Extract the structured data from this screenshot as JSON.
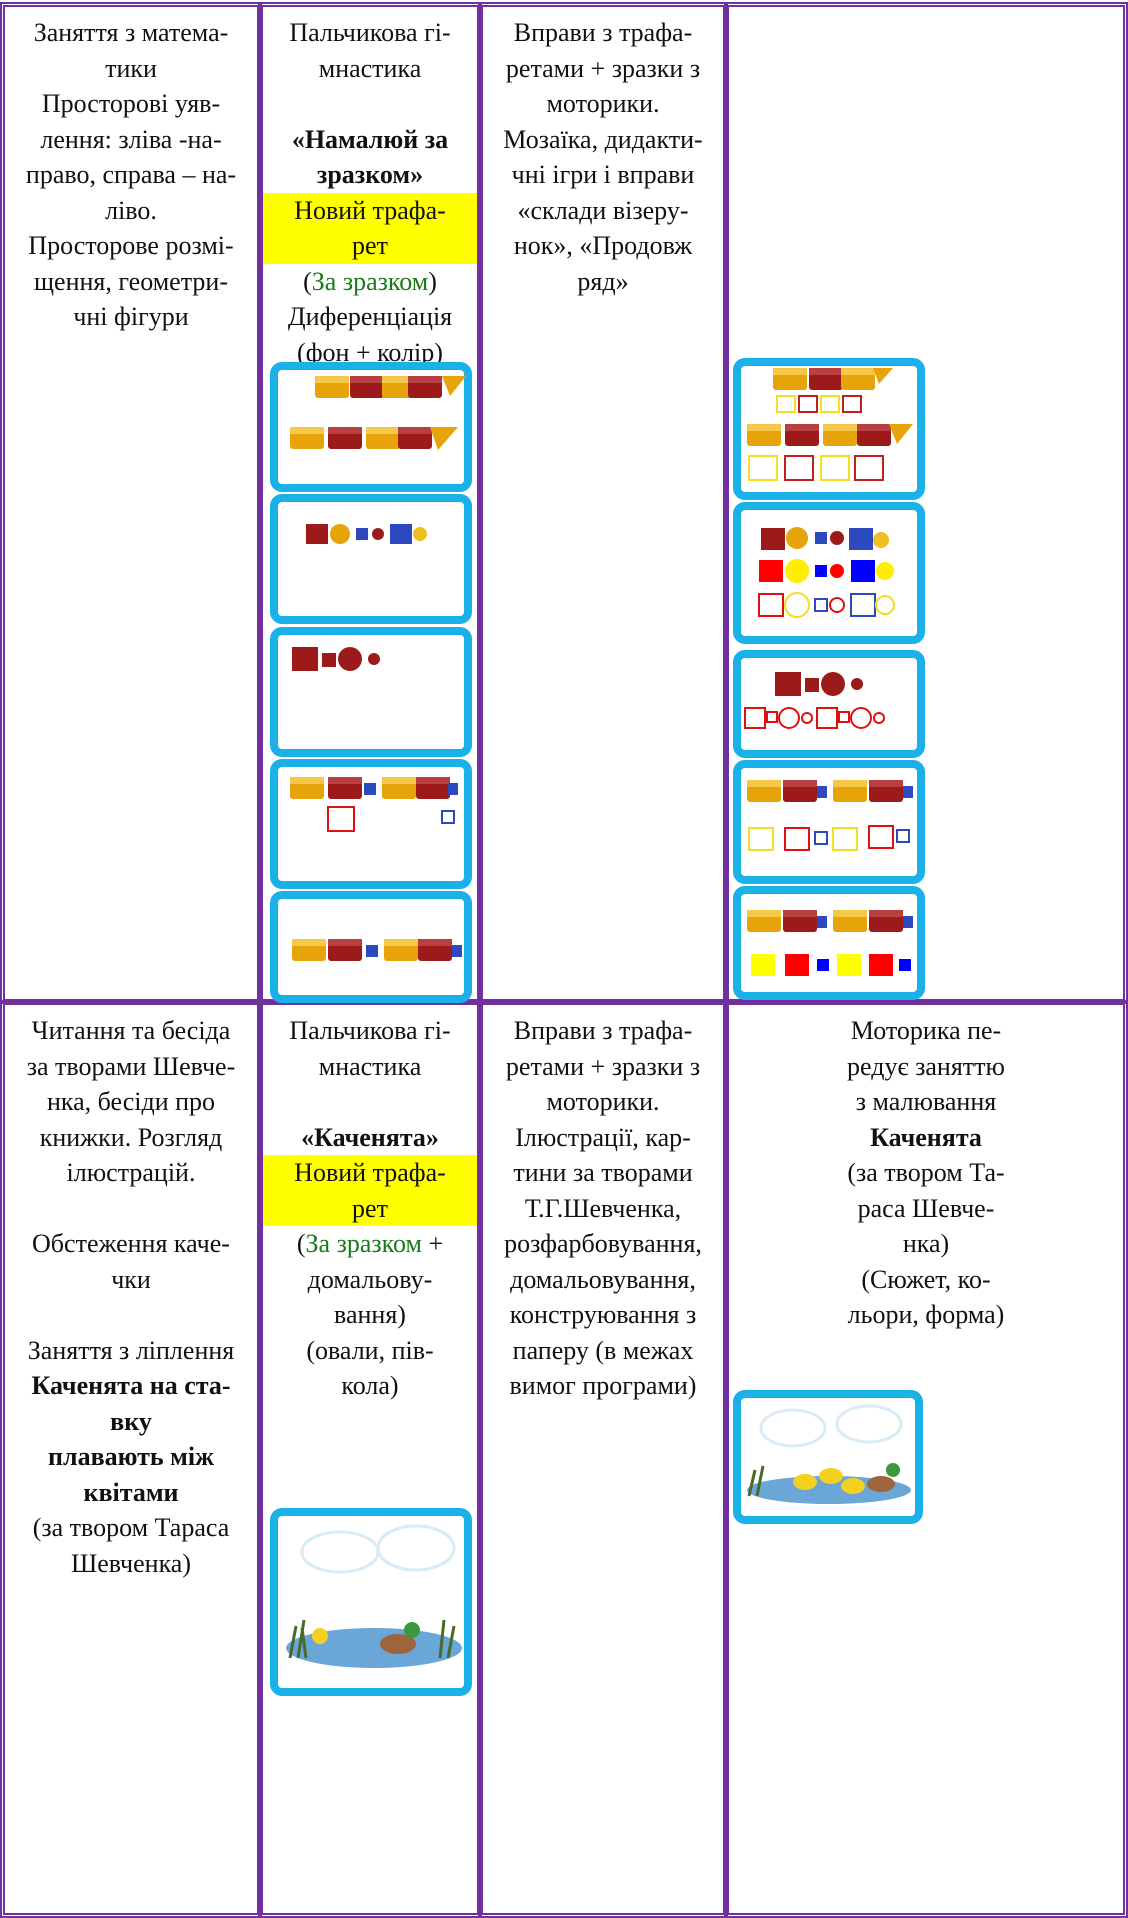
{
  "table": {
    "rows": [
      {
        "cells": [
          {
            "paragraphs": [
              [
                "Заняття з матема-",
                "тики",
                "Просторові уяв-",
                "лення: зліва -на-",
                "право, справа – на-",
                "ліво.",
                "Просторове розмі-",
                "щення, геометри-",
                "чні фігури"
              ]
            ]
          },
          {
            "paragraphs": [
              [
                "Пальчикова гі-",
                "мнастика"
              ],
              [
                {
                  "text": "«Намалюй за",
                  "style": "bold"
                },
                {
                  "text": "зразком»",
                  "style": "bold"
                },
                {
                  "text": "Новий трафа-",
                  "style": "highlight"
                },
                {
                  "text": "рет",
                  "style": "highlight"
                },
                [
                  "(",
                  {
                    "text": "За зразком",
                    "style": "green"
                  },
                  ")"
                ],
                "Диференціація",
                "(фон + колір)"
              ]
            ]
          },
          {
            "paragraphs": [
              [
                "Вправи з трафа-",
                "ретами + зразки з",
                "моторики.",
                "Мозаїка, дидакти-",
                "чні ігри і вправи",
                "«склади візеру-",
                "нок», «Продовж",
                "ряд»"
              ]
            ]
          },
          {
            "paragraphs": []
          }
        ]
      },
      {
        "cells": [
          {
            "paragraphs": [
              [
                "Читання та бесіда",
                "за творами Шевче-",
                "нка, бесіди про",
                "книжки. Розгляд",
                "ілюстрацій."
              ],
              [
                "Обстеження каче-",
                "чки"
              ],
              [
                "Заняття з ліплення",
                {
                  "text": "Каченята на ста-",
                  "style": "bold"
                },
                {
                  "text": "вку",
                  "style": "bold"
                },
                {
                  "text": "плавають між",
                  "style": "bold"
                },
                {
                  "text": "квітами",
                  "style": "bold"
                },
                "(за твором Тараса",
                "Шевченка)"
              ]
            ]
          },
          {
            "paragraphs": [
              [
                "Пальчикова гі-",
                "мнастика"
              ],
              [
                {
                  "text": "«Каченята»",
                  "style": "bold"
                },
                {
                  "text": "Новий трафа-",
                  "style": "highlight"
                },
                {
                  "text": "рет",
                  "style": "highlight"
                },
                [
                  "(",
                  {
                    "text": "За зразком",
                    "style": "green"
                  },
                  " +"
                ],
                "домальову-",
                "вання)",
                "(овали, пів-",
                "кола)"
              ]
            ]
          },
          {
            "paragraphs": [
              [
                "Вправи з трафа-",
                "ретами + зразки з",
                "моторики.",
                "Ілюстрації, кар-",
                "тини за творами",
                "Т.Г.Шевченка,",
                "розфарбовування,",
                "домальовування,",
                "конструювання з",
                "паперу (в межах",
                "вимог програми)"
              ]
            ]
          },
          {
            "paragraphs": [
              [
                "Моторика пе-",
                "редує заняттю",
                "з малювання",
                {
                  "text": "Каченята",
                  "style": "bold"
                },
                "(за твором Та-",
                "раса Шевче-",
                "нка)",
                "(Сюжет, ко-",
                "льори, форма)"
              ]
            ]
          }
        ]
      }
    ]
  }
}
